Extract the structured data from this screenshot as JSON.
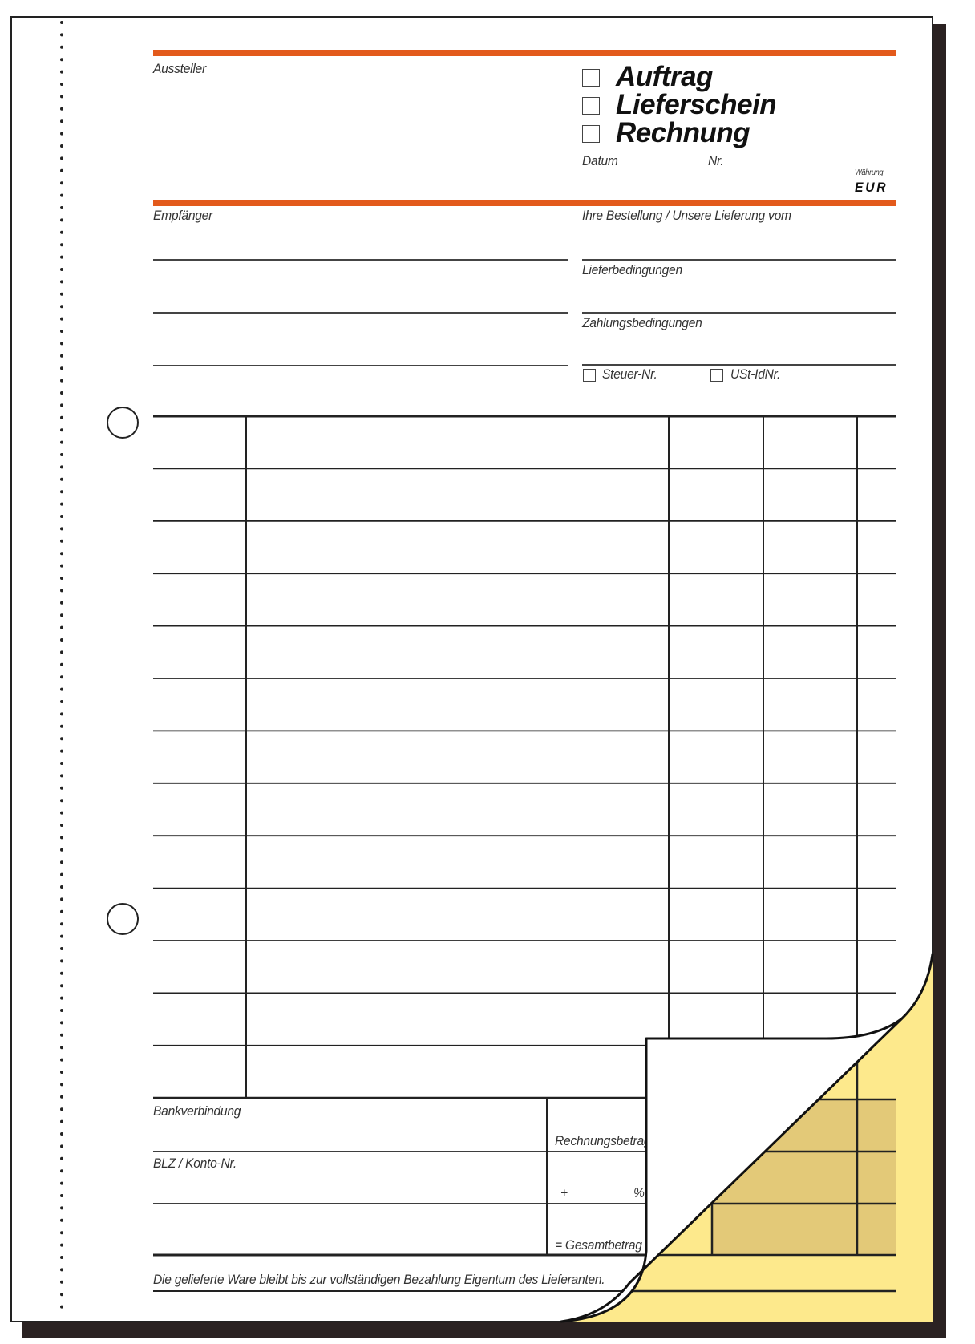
{
  "form": {
    "issuer_label": "Aussteller",
    "doc_types": [
      {
        "label": "Auftrag",
        "checked": false
      },
      {
        "label": "Lieferschein",
        "checked": false
      },
      {
        "label": "Rechnung",
        "checked": false
      }
    ],
    "date_label": "Datum",
    "number_label": "Nr.",
    "currency_label": "Währung",
    "currency_value": "EUR",
    "recipient_label": "Empfänger",
    "order_label": "Ihre Bestellung / Unsere Lieferung vom",
    "delivery_terms_label": "Lieferbedingungen",
    "payment_terms_label": "Zahlungsbedingungen",
    "tax_number_label": "Steuer-Nr.",
    "vat_id_label": "USt-IdNr.",
    "bank_label": "Bankverbindung",
    "account_label": "BLZ / Konto-Nr.",
    "invoice_amount_label": "Rechnungsbetrag",
    "plus_label": "+",
    "percent_label": "%",
    "total_label": "= Gesamtbetrag",
    "footer_note": "Die gelieferte Ware bleibt bis zur vollständigen Bezahlung Eigentum des Lieferanten."
  },
  "colors": {
    "accent_orange": "#e35a1c",
    "copy_yellow": "#fde98c",
    "copy_shaded": "#e3c978",
    "shadow": "#2a2222"
  }
}
